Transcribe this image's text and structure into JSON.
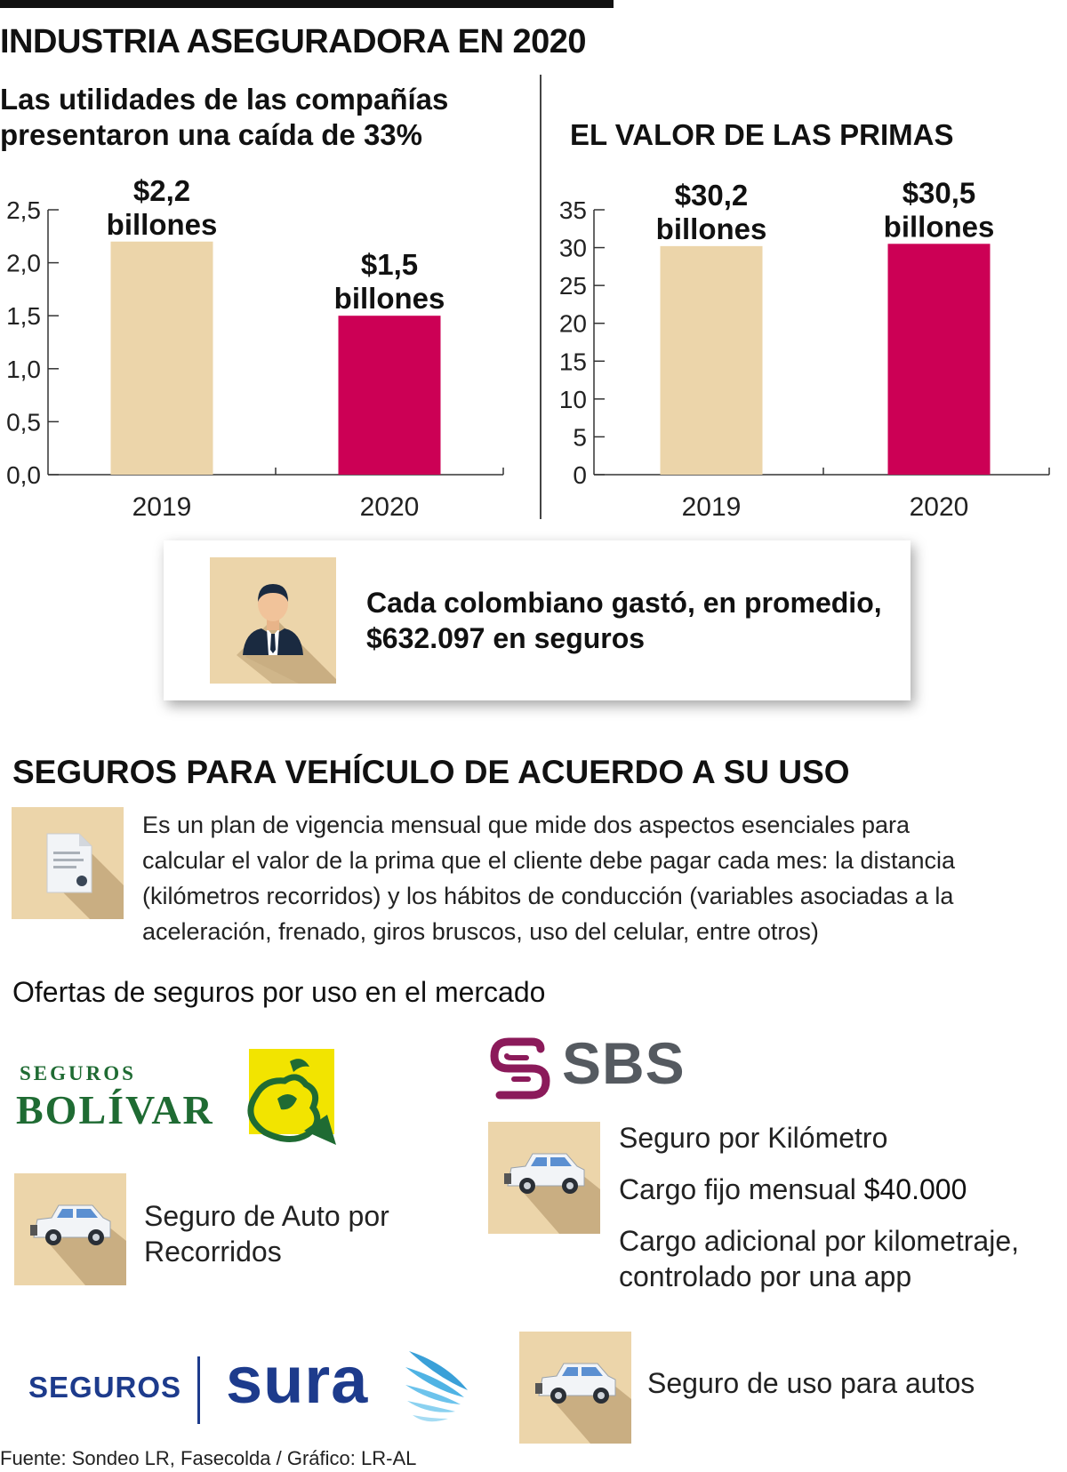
{
  "header": {
    "title": "INDUSTRIA ASEGURADORA EN 2020"
  },
  "chart_data": [
    {
      "type": "bar",
      "title": "Las utilidades de las compañías presentaron una caída de 33%",
      "title_lines": [
        "Las utilidades de las compañías",
        "presentaron una caída de 33%"
      ],
      "categories": [
        "2019",
        "2020"
      ],
      "values": [
        2.2,
        1.5
      ],
      "value_labels": [
        [
          "$2,2",
          "billones"
        ],
        [
          "$1,5",
          "billones"
        ]
      ],
      "ylim": [
        0,
        2.5
      ],
      "yticks": [
        "0,0",
        "0,5",
        "1,0",
        "1,5",
        "2,0",
        "2,5"
      ],
      "ytick_values": [
        0,
        0.5,
        1.0,
        1.5,
        2.0,
        2.5
      ],
      "bar_colors": [
        "#ecd5aa",
        "#cc0055"
      ],
      "grid": false
    },
    {
      "type": "bar",
      "title": "EL VALOR DE LAS PRIMAS",
      "title_lines": [
        "EL VALOR DE LAS PRIMAS"
      ],
      "categories": [
        "2019",
        "2020"
      ],
      "values": [
        30.2,
        30.5
      ],
      "value_labels": [
        [
          "$30,2",
          "billones"
        ],
        [
          "$30,5",
          "billones"
        ]
      ],
      "ylim": [
        0,
        35
      ],
      "yticks": [
        "0",
        "5",
        "10",
        "15",
        "20",
        "25",
        "30",
        "35"
      ],
      "ytick_values": [
        0,
        5,
        10,
        15,
        20,
        25,
        30,
        35
      ],
      "bar_colors": [
        "#ecd5aa",
        "#cc0055"
      ],
      "grid": false
    }
  ],
  "card": {
    "icon": "person-icon",
    "text": "Cada colombiano gastó, en promedio, $632.097 en seguros"
  },
  "section": {
    "title": "SEGUROS PARA VEHÍCULO DE ACUERDO A SU USO",
    "icon": "document-icon",
    "description": "Es un plan de vigencia mensual que mide dos aspectos esenciales para calcular el valor de la prima que el cliente debe pagar cada mes: la distancia (kilómetros recorridos) y los hábitos de conducción (variables asociadas a la aceleración, frenado, giros bruscos, uso del celular, entre otros)"
  },
  "offers": {
    "title": "Ofertas de seguros por uso en el mercado",
    "bolivar": {
      "logo_small": "SEGUROS",
      "logo_big": "BOLÍVAR",
      "product": "Seguro de Auto por Recorridos",
      "icon": "car-icon"
    },
    "sbs": {
      "logo_text": "SBS",
      "line1": "Seguro por Kilómetro",
      "line2_prefix": "Cargo fijo mensual ",
      "line2_value": "$40.000",
      "line3": "Cargo adicional por kilometraje, controlado por una app",
      "icon": "car-icon"
    },
    "sura": {
      "logo_left": "SEGUROS",
      "logo_right": "sura",
      "product": "Seguro de uso para autos",
      "icon": "car-icon"
    }
  },
  "colors": {
    "tan": "#ecd5aa",
    "magenta": "#cc0055",
    "bolivar_green": "#1f6b33",
    "bolivar_yellow": "#f2e400",
    "sbs_purple": "#8b1a5a",
    "sbs_gray": "#555a60",
    "sura_blue": "#1d3b8c",
    "sura_light": "#3aa0d8"
  },
  "footer": {
    "source": "Fuente: Sondeo LR, Fasecolda / Gráfico: LR-AL"
  }
}
